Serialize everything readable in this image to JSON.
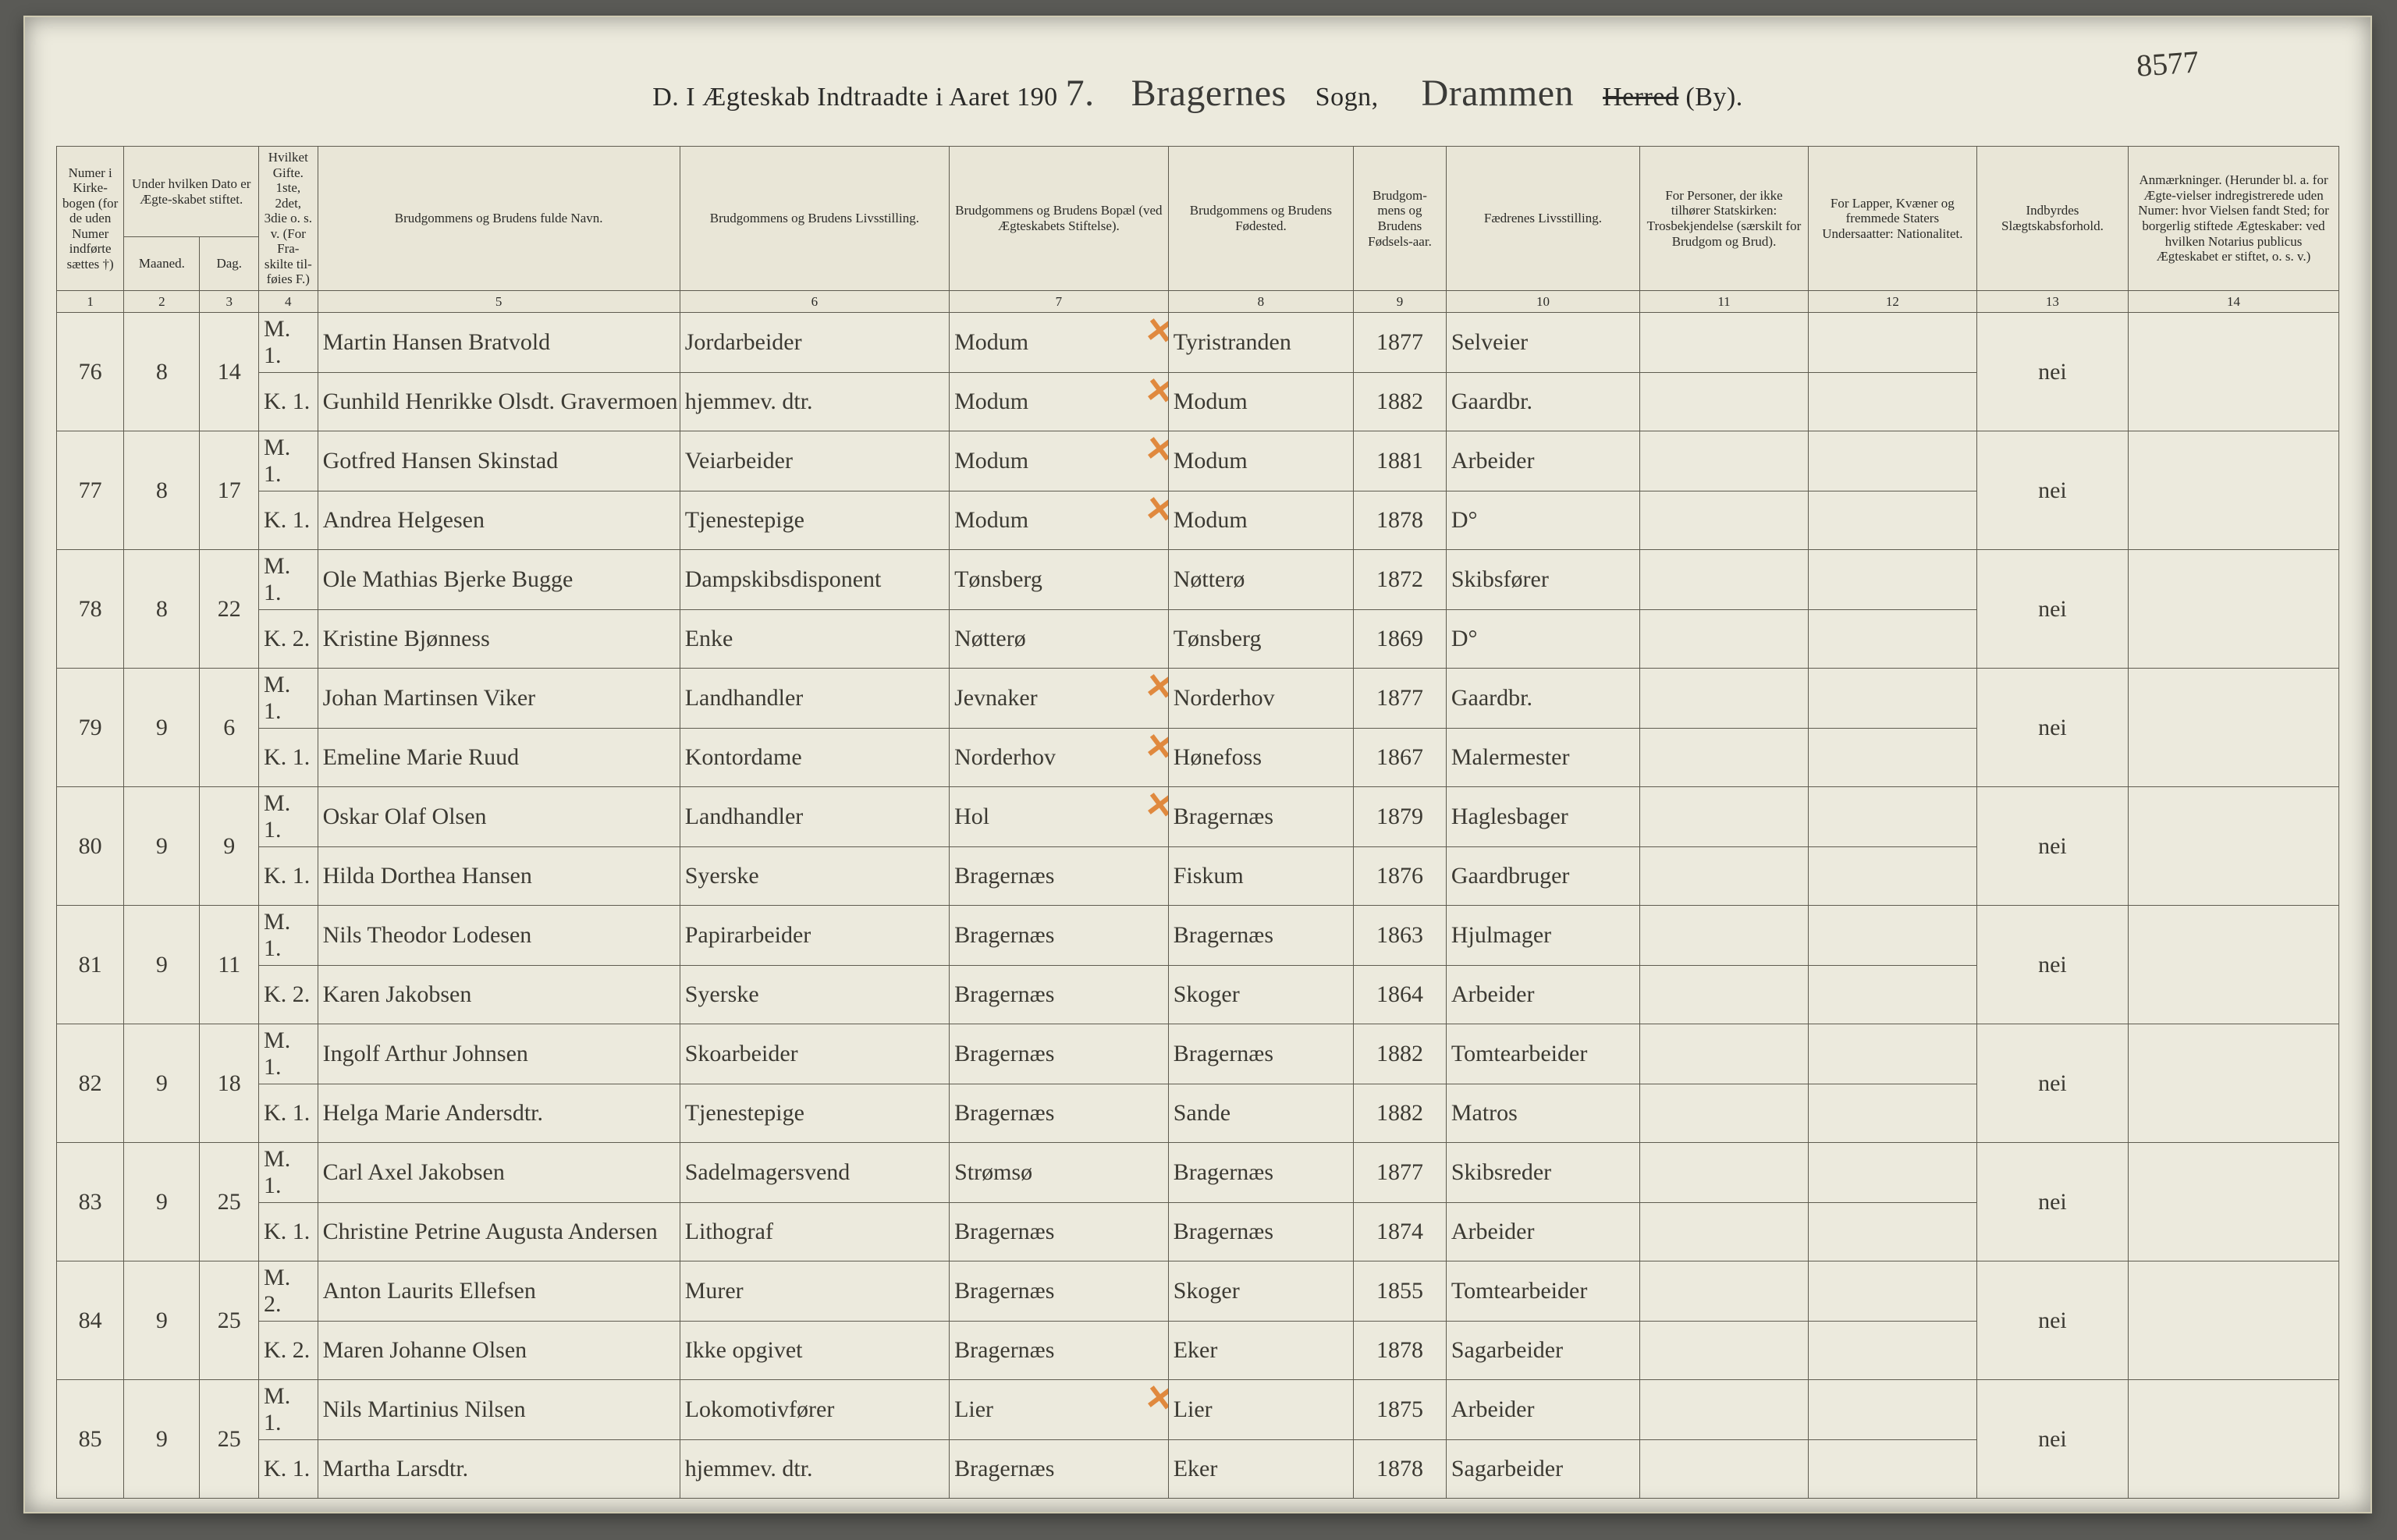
{
  "colors": {
    "paper": "#eceadd",
    "rule": "#5f5c50",
    "ink": "#3c3a33",
    "orange": "#e0893e",
    "border": "#cfcab2",
    "bgOuter": "#5a5a56"
  },
  "pageNumber": "8577",
  "title": {
    "prefix": "D.  I Ægteskab Indtraadte i Aaret 190",
    "yearDigit": "7.",
    "sognScript": "Bragernes",
    "sognLabel": "Sogn,",
    "herredScript": "Drammen",
    "herredStruck": "Herred",
    "bySuffix": "(By)."
  },
  "headers": {
    "c1": "Numer i Kirke-bogen (for de uden Numer indførte sættes †)",
    "c2": "Under hvilken Dato er Ægte-skabet stiftet.",
    "c2a": "Maaned.",
    "c2b": "Dag.",
    "c3": "Hvilket Gifte. 1ste, 2det, 3die o. s. v. (For Fra-skilte til-føies F.)",
    "c4": "Brudgommens og Brudens fulde Navn.",
    "c5": "Brudgommens og Brudens Livsstilling.",
    "c6": "Brudgommens og Brudens Bopæl (ved Ægteskabets Stiftelse).",
    "c7": "Brudgommens og Brudens Fødested.",
    "c8": "Brudgom-mens og Brudens Fødsels-aar.",
    "c9": "Fædrenes Livsstilling.",
    "c10": "For Personer, der ikke tilhører Statskirken: Trosbekjendelse (særskilt for Brudgom og Brud).",
    "c11": "For Lapper, Kvæner og fremmede Staters Undersaatter: Nationalitet.",
    "c12": "Indbyrdes Slægtskabsforhold.",
    "c13": "Anmærkninger. (Herunder bl. a. for Ægte-vielser indregistrerede uden Numer: hvor Vielsen fandt Sted; for borgerlig stiftede Ægteskaber: ved hvilken Notarius publicus Ægteskabet er stiftet, o. s. v.)",
    "nums": [
      "1",
      "2",
      "3",
      "4",
      "5",
      "6",
      "7",
      "8",
      "9",
      "10",
      "11",
      "12",
      "13",
      "14"
    ]
  },
  "rows": [
    {
      "no": "76",
      "maaned": "8",
      "dag": "14",
      "m": {
        "gifte": "M. 1.",
        "navn": "Martin Hansen Bratvold",
        "stilling": "Jordarbeider",
        "bopael": "Modum",
        "foedested": "Tyristranden",
        "aar": "1877",
        "faedre": "Selveier"
      },
      "k": {
        "gifte": "K. 1.",
        "navn": "Gunhild Henrikke Olsdt. Gravermoen",
        "stilling": "hjemmev. dtr.",
        "bopael": "Modum",
        "foedested": "Modum",
        "aar": "1882",
        "faedre": "Gaardbr."
      },
      "slaegt": "nei",
      "marksM": true,
      "marksK": true
    },
    {
      "no": "77",
      "maaned": "8",
      "dag": "17",
      "m": {
        "gifte": "M. 1.",
        "navn": "Gotfred Hansen Skinstad",
        "stilling": "Veiarbeider",
        "bopael": "Modum",
        "foedested": "Modum",
        "aar": "1881",
        "faedre": "Arbeider"
      },
      "k": {
        "gifte": "K. 1.",
        "navn": "Andrea Helgesen",
        "stilling": "Tjenestepige",
        "bopael": "Modum",
        "foedested": "Modum",
        "aar": "1878",
        "faedre": "D°"
      },
      "slaegt": "nei",
      "marksM": true,
      "marksK": true
    },
    {
      "no": "78",
      "maaned": "8",
      "dag": "22",
      "m": {
        "gifte": "M. 1.",
        "navn": "Ole Mathias Bjerke Bugge",
        "stilling": "Dampskibsdisponent",
        "bopael": "Tønsberg",
        "foedested": "Nøtterø",
        "aar": "1872",
        "faedre": "Skibsfører"
      },
      "k": {
        "gifte": "K. 2.",
        "navn": "Kristine Bjønness",
        "stilling": "Enke",
        "bopael": "Nøtterø",
        "foedested": "Tønsberg",
        "aar": "1869",
        "faedre": "D°"
      },
      "slaegt": "nei",
      "marksM": false,
      "marksK": false
    },
    {
      "no": "79",
      "maaned": "9",
      "dag": "6",
      "m": {
        "gifte": "M. 1.",
        "navn": "Johan Martinsen Viker",
        "stilling": "Landhandler",
        "bopael": "Jevnaker",
        "foedested": "Norderhov",
        "aar": "1877",
        "faedre": "Gaardbr."
      },
      "k": {
        "gifte": "K. 1.",
        "navn": "Emeline Marie Ruud",
        "stilling": "Kontordame",
        "bopael": "Norderhov",
        "foedested": "Hønefoss",
        "aar": "1867",
        "faedre": "Malermester"
      },
      "slaegt": "nei",
      "marksM": true,
      "marksK": true
    },
    {
      "no": "80",
      "maaned": "9",
      "dag": "9",
      "m": {
        "gifte": "M. 1.",
        "navn": "Oskar Olaf Olsen",
        "stilling": "Landhandler",
        "bopael": "Hol",
        "foedested": "Bragernæs",
        "aar": "1879",
        "faedre": "Haglesbager"
      },
      "k": {
        "gifte": "K. 1.",
        "navn": "Hilda Dorthea Hansen",
        "stilling": "Syerske",
        "bopael": "Bragernæs",
        "foedested": "Fiskum",
        "aar": "1876",
        "faedre": "Gaardbruger"
      },
      "slaegt": "nei",
      "marksM": true,
      "marksK": false
    },
    {
      "no": "81",
      "maaned": "9",
      "dag": "11",
      "m": {
        "gifte": "M. 1.",
        "navn": "Nils Theodor Lodesen",
        "stilling": "Papirarbeider",
        "bopael": "Bragernæs",
        "foedested": "Bragernæs",
        "aar": "1863",
        "faedre": "Hjulmager"
      },
      "k": {
        "gifte": "K. 2.",
        "navn": "Karen Jakobsen",
        "stilling": "Syerske",
        "bopael": "Bragernæs",
        "foedested": "Skoger",
        "aar": "1864",
        "faedre": "Arbeider"
      },
      "slaegt": "nei"
    },
    {
      "no": "82",
      "maaned": "9",
      "dag": "18",
      "m": {
        "gifte": "M. 1.",
        "navn": "Ingolf Arthur Johnsen",
        "stilling": "Skoarbeider",
        "bopael": "Bragernæs",
        "foedested": "Bragernæs",
        "aar": "1882",
        "faedre": "Tomtearbeider"
      },
      "k": {
        "gifte": "K. 1.",
        "navn": "Helga Marie Andersdtr.",
        "stilling": "Tjenestepige",
        "bopael": "Bragernæs",
        "foedested": "Sande",
        "aar": "1882",
        "faedre": "Matros"
      },
      "slaegt": "nei"
    },
    {
      "no": "83",
      "maaned": "9",
      "dag": "25",
      "m": {
        "gifte": "M. 1.",
        "navn": "Carl Axel Jakobsen",
        "stilling": "Sadelmagersvend",
        "bopael": "Strømsø",
        "foedested": "Bragernæs",
        "aar": "1877",
        "faedre": "Skibsreder"
      },
      "k": {
        "gifte": "K. 1.",
        "navn": "Christine Petrine Augusta Andersen",
        "stilling": "Lithograf",
        "bopael": "Bragernæs",
        "foedested": "Bragernæs",
        "aar": "1874",
        "faedre": "Arbeider"
      },
      "slaegt": "nei"
    },
    {
      "no": "84",
      "maaned": "9",
      "dag": "25",
      "m": {
        "gifte": "M. 2.",
        "navn": "Anton Laurits Ellefsen",
        "stilling": "Murer",
        "bopael": "Bragernæs",
        "foedested": "Skoger",
        "aar": "1855",
        "faedre": "Tomtearbeider"
      },
      "k": {
        "gifte": "K. 2.",
        "navn": "Maren Johanne Olsen",
        "stilling": "Ikke opgivet",
        "bopael": "Bragernæs",
        "foedested": "Eker",
        "aar": "1878",
        "faedre": "Sagarbeider"
      },
      "slaegt": "nei"
    },
    {
      "no": "85",
      "maaned": "9",
      "dag": "25",
      "m": {
        "gifte": "M. 1.",
        "navn": "Nils Martinius Nilsen",
        "stilling": "Lokomotivfører",
        "bopael": "Lier",
        "foedested": "Lier",
        "aar": "1875",
        "faedre": "Arbeider"
      },
      "k": {
        "gifte": "K. 1.",
        "navn": "Martha Larsdtr.",
        "stilling": "hjemmev. dtr.",
        "bopael": "Bragernæs",
        "foedested": "Eker",
        "aar": "1878",
        "faedre": "Sagarbeider"
      },
      "slaegt": "nei",
      "marksM": true
    }
  ]
}
